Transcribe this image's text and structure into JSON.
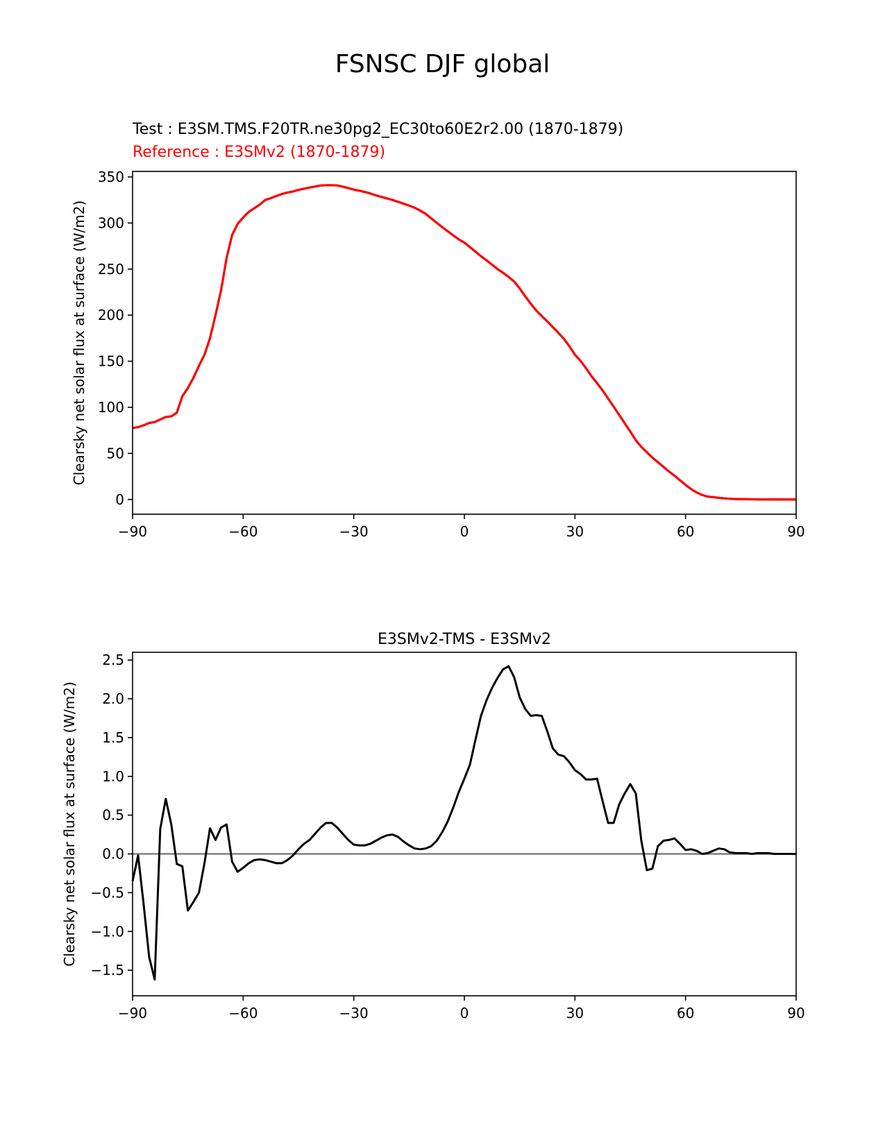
{
  "figure": {
    "title": "FSNSC DJF global",
    "test_label": "Test : E3SM.TMS.F20TR.ne30pg2_EC30to60E2r2.00 (1870-1879)",
    "reference_label": "Reference : E3SMv2 (1870-1879)",
    "colors": {
      "test": "#000000",
      "reference": "#ff0000",
      "zero_line": "#808080"
    }
  },
  "chart_data": [
    {
      "type": "line",
      "title": "",
      "xlabel": "",
      "ylabel": "Clearsky net solar flux at surface (W/m2)",
      "xlim": [
        -90,
        90
      ],
      "ylim": [
        -16,
        356
      ],
      "xticks": [
        -90,
        -60,
        -30,
        0,
        30,
        60,
        90
      ],
      "xtick_labels": [
        "−90",
        "−60",
        "−30",
        "0",
        "30",
        "60",
        "90"
      ],
      "yticks": [
        0,
        50,
        100,
        150,
        200,
        250,
        300,
        350
      ],
      "ytick_labels": [
        "0",
        "50",
        "100",
        "150",
        "200",
        "250",
        "300",
        "350"
      ],
      "grid": false,
      "x": [
        -90,
        -88.5,
        -87,
        -85.5,
        -84,
        -82.5,
        -81,
        -79.5,
        -78,
        -76.5,
        -75,
        -73.5,
        -72,
        -70.5,
        -69,
        -67.5,
        -66,
        -64.5,
        -63,
        -61.5,
        -60,
        -58.5,
        -57,
        -55.5,
        -54,
        -52.5,
        -51,
        -49.5,
        -48,
        -46.5,
        -45,
        -43.5,
        -42,
        -40.5,
        -39,
        -37.5,
        -36,
        -34.5,
        -33,
        -31.5,
        -30,
        -28.5,
        -27,
        -25.5,
        -24,
        -22.5,
        -21,
        -19.5,
        -18,
        -16.5,
        -15,
        -13.5,
        -12,
        -10.5,
        -9,
        -7.5,
        -6,
        -4.5,
        -3,
        -1.5,
        0,
        1.5,
        3,
        4.5,
        6,
        7.5,
        9,
        10.5,
        12,
        13.5,
        15,
        16.5,
        18,
        19.5,
        21,
        22.5,
        24,
        25.5,
        27,
        28.5,
        30,
        31.5,
        33,
        34.5,
        36,
        37.5,
        39,
        40.5,
        42,
        43.5,
        45,
        46.5,
        48,
        49.5,
        51,
        52.5,
        54,
        55.5,
        57,
        58.5,
        60,
        61.5,
        63,
        64.5,
        66,
        67.5,
        69,
        70.5,
        72,
        73.5,
        75,
        76.5,
        78,
        79.5,
        81,
        82.5,
        84,
        85.5,
        87,
        88.5,
        90
      ],
      "series": [
        {
          "name": "Test",
          "color": "#000000",
          "values": [
            77.6,
            78.5,
            80.5,
            83,
            84,
            86.8,
            89.5,
            90.2,
            94.2,
            112,
            121,
            132,
            145,
            157,
            175,
            200,
            227,
            262,
            287,
            299,
            306,
            312,
            316,
            320,
            325,
            327,
            329.3,
            331.5,
            333,
            334.2,
            336,
            337.2,
            338.5,
            339.6,
            340.7,
            341,
            341,
            340.8,
            339.5,
            338,
            336.2,
            335.1,
            333.7,
            332,
            330,
            328.4,
            326.7,
            325.1,
            323,
            321,
            318.9,
            316.6,
            313.5,
            310,
            305,
            300.3,
            295.5,
            291,
            286.5,
            282.2,
            278.7,
            273.8,
            269,
            264,
            259.5,
            254.8,
            250,
            246,
            241.5,
            236.5,
            229,
            220.5,
            212.5,
            205,
            199,
            193.2,
            187,
            180.8,
            174.3,
            166.2,
            157,
            150.5,
            142.4,
            133.7,
            126.2,
            118.3,
            109.5,
            100.7,
            91.8,
            82.6,
            73.8,
            64.3,
            57.1,
            51.3,
            45.4,
            40.5,
            35.4,
            30.4,
            25.8,
            20.8,
            15.8,
            11.3,
            7.6,
            4.9,
            3.1,
            2.5,
            1.8,
            1.2,
            0.8,
            0.5,
            0.4,
            0.3,
            0.2,
            0.1,
            0.05,
            0.03,
            0.02,
            0.01,
            0,
            0,
            0
          ]
        },
        {
          "name": "Reference",
          "color": "#ff0000",
          "values": [
            77.6,
            78.5,
            80.5,
            83,
            84,
            86.8,
            89.5,
            90.2,
            94.2,
            112,
            121,
            132,
            145,
            157,
            175,
            200,
            227,
            262,
            287,
            299,
            306,
            312,
            316,
            320,
            325,
            327,
            329.3,
            331.5,
            333,
            334.2,
            336,
            337.2,
            338.5,
            339.6,
            340.7,
            341,
            341,
            340.8,
            339.5,
            338,
            336.2,
            335.1,
            333.7,
            332,
            330,
            328.4,
            326.7,
            325.1,
            323,
            321,
            318.9,
            316.6,
            313.5,
            310,
            305,
            300.3,
            295.5,
            291,
            286.5,
            282.2,
            278.7,
            273.8,
            269,
            264,
            259.5,
            254.8,
            250,
            246,
            241.5,
            236.5,
            229,
            220.5,
            212.5,
            205,
            199,
            193.2,
            187,
            180.8,
            174.3,
            166.2,
            157,
            150.5,
            142.4,
            133.7,
            126.2,
            118.3,
            109.5,
            100.7,
            91.8,
            82.6,
            73.8,
            64.3,
            57.1,
            51.3,
            45.4,
            40.5,
            35.4,
            30.4,
            25.8,
            20.8,
            15.8,
            11.3,
            7.6,
            4.9,
            3.1,
            2.5,
            1.8,
            1.2,
            0.8,
            0.5,
            0.4,
            0.3,
            0.2,
            0.1,
            0.05,
            0.03,
            0.02,
            0.01,
            0,
            0,
            0
          ]
        }
      ]
    },
    {
      "type": "line",
      "title": "E3SMv2-TMS - E3SMv2",
      "xlabel": "",
      "ylabel": "Clearsky net solar flux at surface (W/m2)",
      "xlim": [
        -90,
        90
      ],
      "ylim": [
        -1.83,
        2.6
      ],
      "xticks": [
        -90,
        -60,
        -30,
        0,
        30,
        60,
        90
      ],
      "xtick_labels": [
        "−90",
        "−60",
        "−30",
        "0",
        "30",
        "60",
        "90"
      ],
      "yticks": [
        -1.5,
        -1.0,
        -0.5,
        0.0,
        0.5,
        1.0,
        1.5,
        2.0,
        2.5
      ],
      "ytick_labels": [
        "−1.5",
        "−1.0",
        "−0.5",
        "0.0",
        "0.5",
        "1.0",
        "1.5",
        "2.0",
        "2.5"
      ],
      "grid": false,
      "zero_line": 0,
      "x": [
        -90,
        -88.5,
        -87,
        -85.5,
        -84,
        -82.5,
        -81,
        -79.5,
        -78,
        -76.5,
        -75,
        -73.5,
        -72,
        -70.5,
        -69,
        -67.5,
        -66,
        -64.5,
        -63,
        -61.5,
        -60,
        -58.5,
        -57,
        -55.5,
        -54,
        -52.5,
        -51,
        -49.5,
        -48,
        -46.5,
        -45,
        -43.5,
        -42,
        -40.5,
        -39,
        -37.5,
        -36,
        -34.5,
        -33,
        -31.5,
        -30,
        -28.5,
        -27,
        -25.5,
        -24,
        -22.5,
        -21,
        -19.5,
        -18,
        -16.5,
        -15,
        -13.5,
        -12,
        -10.5,
        -9,
        -7.5,
        -6,
        -4.5,
        -3,
        -1.5,
        0,
        1.5,
        3,
        4.5,
        6,
        7.5,
        9,
        10.5,
        12,
        13.5,
        15,
        16.5,
        18,
        19.5,
        21,
        22.5,
        24,
        25.5,
        27,
        28.5,
        30,
        31.5,
        33,
        34.5,
        36,
        37.5,
        39,
        40.5,
        42,
        43.5,
        45,
        46.5,
        48,
        49.5,
        51,
        52.5,
        54,
        55.5,
        57,
        58.5,
        60,
        61.5,
        63,
        64.5,
        66,
        67.5,
        69,
        70.5,
        72,
        73.5,
        75,
        76.5,
        78,
        79.5,
        81,
        82.5,
        84,
        85.5,
        87,
        88.5,
        90
      ],
      "series": [
        {
          "name": "E3SMv2-TMS - E3SMv2",
          "color": "#000000",
          "values": [
            -0.35,
            -0.02,
            -0.65,
            -1.33,
            -1.62,
            0.32,
            0.71,
            0.38,
            -0.13,
            -0.16,
            -0.73,
            -0.62,
            -0.5,
            -0.12,
            0.33,
            0.18,
            0.34,
            0.38,
            -0.1,
            -0.23,
            -0.18,
            -0.12,
            -0.08,
            -0.07,
            -0.08,
            -0.1,
            -0.12,
            -0.12,
            -0.08,
            -0.02,
            0.06,
            0.13,
            0.18,
            0.26,
            0.34,
            0.4,
            0.4,
            0.34,
            0.26,
            0.18,
            0.12,
            0.11,
            0.11,
            0.13,
            0.17,
            0.21,
            0.24,
            0.25,
            0.22,
            0.16,
            0.11,
            0.07,
            0.06,
            0.07,
            0.1,
            0.17,
            0.28,
            0.42,
            0.6,
            0.8,
            0.97,
            1.15,
            1.47,
            1.78,
            1.98,
            2.14,
            2.27,
            2.38,
            2.42,
            2.28,
            2.02,
            1.87,
            1.78,
            1.79,
            1.78,
            1.58,
            1.36,
            1.28,
            1.26,
            1.18,
            1.08,
            1.03,
            0.96,
            0.96,
            0.97,
            0.68,
            0.4,
            0.4,
            0.64,
            0.78,
            0.9,
            0.78,
            0.17,
            -0.21,
            -0.19,
            0.1,
            0.17,
            0.18,
            0.2,
            0.13,
            0.05,
            0.06,
            0.04,
            0,
            0.01,
            0.04,
            0.07,
            0.06,
            0.02,
            0.01,
            0.01,
            0.01,
            0,
            0.01,
            0.01,
            0.01,
            0,
            0,
            0,
            0,
            0
          ]
        }
      ]
    }
  ]
}
